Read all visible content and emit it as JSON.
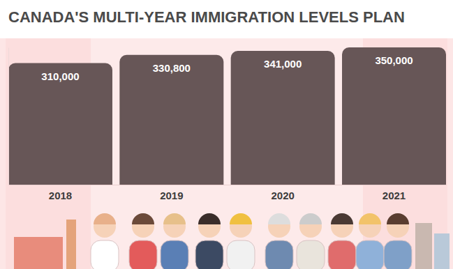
{
  "chart_data": {
    "type": "bar",
    "title": "CANADA'S MULTI-YEAR IMMIGRATION LEVELS PLAN",
    "categories": [
      "2018",
      "2019",
      "2020",
      "2021"
    ],
    "values": [
      310000,
      330800,
      341000,
      350000
    ],
    "value_labels": [
      "310,000",
      "330,800",
      "341,000",
      "350,000"
    ],
    "color": "#675657",
    "ylim": [
      0,
      350000
    ],
    "yticks": [],
    "grid": false,
    "data_labels": true,
    "tick_labels": "x"
  }
}
